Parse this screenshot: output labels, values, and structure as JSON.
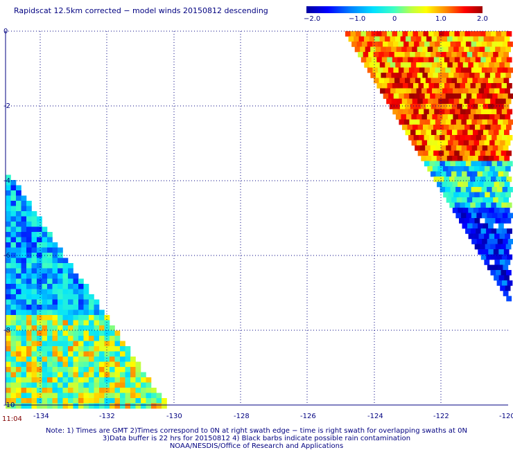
{
  "title": "Rapidscat 12.5km corrected − model winds 20150812 descending",
  "colorbar": {
    "labels": [
      "−2.0",
      "−1.0",
      "0",
      "1.0",
      "2.0"
    ],
    "min": -2.0,
    "max": 2.0
  },
  "map": {
    "lon_range": [
      -135,
      -120
    ],
    "lat_range": [
      -10,
      0
    ],
    "lon_ticks": [
      "-134",
      "-132",
      "-130",
      "-128",
      "-126",
      "-124",
      "-122",
      "-120"
    ],
    "lat_ticks": [
      "0",
      "-2",
      "-4",
      "-6",
      "-8",
      "-10"
    ],
    "grid": "dotted",
    "swaths": [
      "northeast",
      "southwest"
    ]
  },
  "time_label": "11:04",
  "notes": [
    "Note: 1) Times are GMT 2)Times correspond to 0N at right swath edge − time is right swath for overlapping swaths at 0N",
    "3)Data buffer is 22 hrs for 20150812 4) Black barbs indicate possible rain contamination",
    "NOAA/NESDIS/Office of Research and Applications"
  ],
  "colors": {
    "text": "#000080",
    "time": "#800000",
    "grid": "#000080"
  }
}
